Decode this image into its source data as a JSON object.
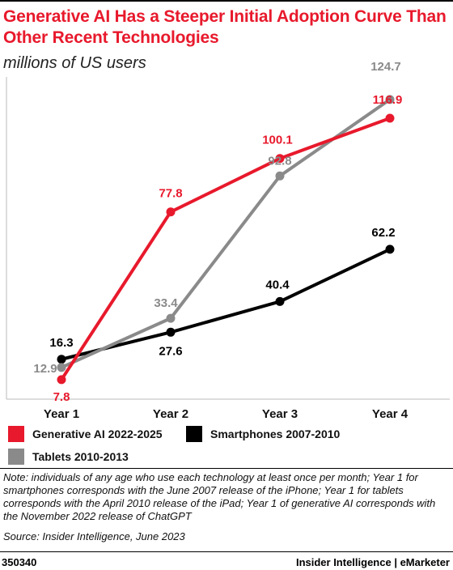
{
  "header": {
    "title": "Generative AI Has a Steeper Initial Adoption Curve Than Other Recent Technologies",
    "subtitle": "millions of US users"
  },
  "colors": {
    "generative_ai": "#e8192c",
    "smartphones": "#000000",
    "tablets": "#8a8a8a",
    "title": "#e8192c"
  },
  "chart_data": {
    "type": "line",
    "title": "Generative AI Has a Steeper Initial Adoption Curve Than Other Recent Technologies",
    "subtitle": "millions of US users",
    "categories": [
      "Year 1",
      "Year 2",
      "Year 3",
      "Year 4"
    ],
    "series": [
      {
        "name": "Generative AI 2022-2025",
        "color": "#e8192c",
        "values": [
          7.8,
          77.8,
          100.1,
          116.9
        ]
      },
      {
        "name": "Smartphones 2007-2010",
        "color": "#000000",
        "values": [
          16.3,
          27.6,
          40.4,
          62.2
        ]
      },
      {
        "name": "Tablets 2010-2013",
        "color": "#8a8a8a",
        "values": [
          12.9,
          33.4,
          92.8,
          124.7
        ]
      }
    ],
    "ylim": [
      0,
      130
    ],
    "grid": false,
    "legend": "bottom"
  },
  "legend": [
    {
      "label": "Generative AI 2022-2025",
      "color": "#e8192c"
    },
    {
      "label": "Smartphones 2007-2010",
      "color": "#000000"
    },
    {
      "label": "Tablets 2010-2013",
      "color": "#8a8a8a"
    }
  ],
  "note": "Note: individuals of any age who use each technology at least once per month; Year 1 for smartphones corresponds with the June 2007 release of the iPhone; Year 1 for tablets corresponds with the April 2010 release of the iPad; Year 1 of generative AI corresponds with the November 2022 release of ChatGPT",
  "source": "Source: Insider Intelligence, June 2023",
  "footer": {
    "chart_id": "350340",
    "brand": "Insider Intelligence | eMarketer"
  }
}
